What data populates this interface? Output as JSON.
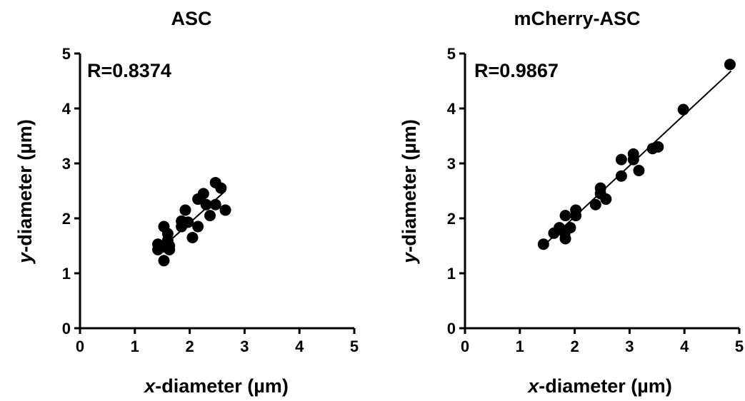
{
  "chart_data": [
    {
      "type": "scatter",
      "title": "ASC",
      "xlabel_prefix": "x",
      "xlabel_rest": "-diameter (µm)",
      "ylabel_prefix": "y",
      "ylabel_rest": "-diameter (µm)",
      "xlim": [
        0,
        5
      ],
      "ylim": [
        0,
        5
      ],
      "xticks": [
        "0",
        "1",
        "2",
        "3",
        "4",
        "5"
      ],
      "yticks": [
        "0",
        "1",
        "2",
        "3",
        "4",
        "5"
      ],
      "annotation": "R=0.8374",
      "fit_line": {
        "x": [
          1.5,
          2.65
        ],
        "y": [
          1.47,
          2.5
        ]
      },
      "points": [
        {
          "x": 1.42,
          "y": 1.53
        },
        {
          "x": 1.42,
          "y": 1.43
        },
        {
          "x": 1.53,
          "y": 1.85
        },
        {
          "x": 1.53,
          "y": 1.48
        },
        {
          "x": 1.53,
          "y": 1.23
        },
        {
          "x": 1.6,
          "y": 1.72
        },
        {
          "x": 1.6,
          "y": 1.6
        },
        {
          "x": 1.63,
          "y": 1.5
        },
        {
          "x": 1.63,
          "y": 1.43
        },
        {
          "x": 1.85,
          "y": 1.95
        },
        {
          "x": 1.85,
          "y": 1.85
        },
        {
          "x": 1.92,
          "y": 2.15
        },
        {
          "x": 1.97,
          "y": 1.93
        },
        {
          "x": 2.05,
          "y": 1.65
        },
        {
          "x": 2.15,
          "y": 2.35
        },
        {
          "x": 2.15,
          "y": 1.85
        },
        {
          "x": 2.25,
          "y": 2.45
        },
        {
          "x": 2.3,
          "y": 2.25
        },
        {
          "x": 2.37,
          "y": 2.05
        },
        {
          "x": 2.47,
          "y": 2.65
        },
        {
          "x": 2.47,
          "y": 2.25
        },
        {
          "x": 2.57,
          "y": 2.55
        },
        {
          "x": 2.65,
          "y": 2.15
        }
      ]
    },
    {
      "type": "scatter",
      "title": "mCherry-ASC",
      "xlabel_prefix": "x",
      "xlabel_rest": "-diameter (µm)",
      "ylabel_prefix": "y",
      "ylabel_rest": "-diameter (µm)",
      "xlim": [
        0,
        5
      ],
      "ylim": [
        0,
        5
      ],
      "xticks": [
        "0",
        "1",
        "2",
        "3",
        "4",
        "5"
      ],
      "yticks": [
        "0",
        "1",
        "2",
        "3",
        "4",
        "5"
      ],
      "annotation": "R=0.9867",
      "fit_line": {
        "x": [
          1.43,
          4.85
        ],
        "y": [
          1.5,
          4.68
        ]
      },
      "points": [
        {
          "x": 1.43,
          "y": 1.53
        },
        {
          "x": 1.62,
          "y": 1.73
        },
        {
          "x": 1.72,
          "y": 1.83
        },
        {
          "x": 1.82,
          "y": 1.73
        },
        {
          "x": 1.83,
          "y": 2.05
        },
        {
          "x": 1.83,
          "y": 1.63
        },
        {
          "x": 1.92,
          "y": 1.83
        },
        {
          "x": 2.02,
          "y": 2.15
        },
        {
          "x": 2.02,
          "y": 2.05
        },
        {
          "x": 2.38,
          "y": 2.25
        },
        {
          "x": 2.47,
          "y": 2.55
        },
        {
          "x": 2.47,
          "y": 2.45
        },
        {
          "x": 2.57,
          "y": 2.35
        },
        {
          "x": 2.85,
          "y": 3.07
        },
        {
          "x": 2.85,
          "y": 2.77
        },
        {
          "x": 3.07,
          "y": 3.17
        },
        {
          "x": 3.07,
          "y": 3.07
        },
        {
          "x": 3.17,
          "y": 2.87
        },
        {
          "x": 3.42,
          "y": 3.27
        },
        {
          "x": 3.52,
          "y": 3.3
        },
        {
          "x": 3.98,
          "y": 3.98
        },
        {
          "x": 4.83,
          "y": 4.8
        }
      ]
    }
  ]
}
